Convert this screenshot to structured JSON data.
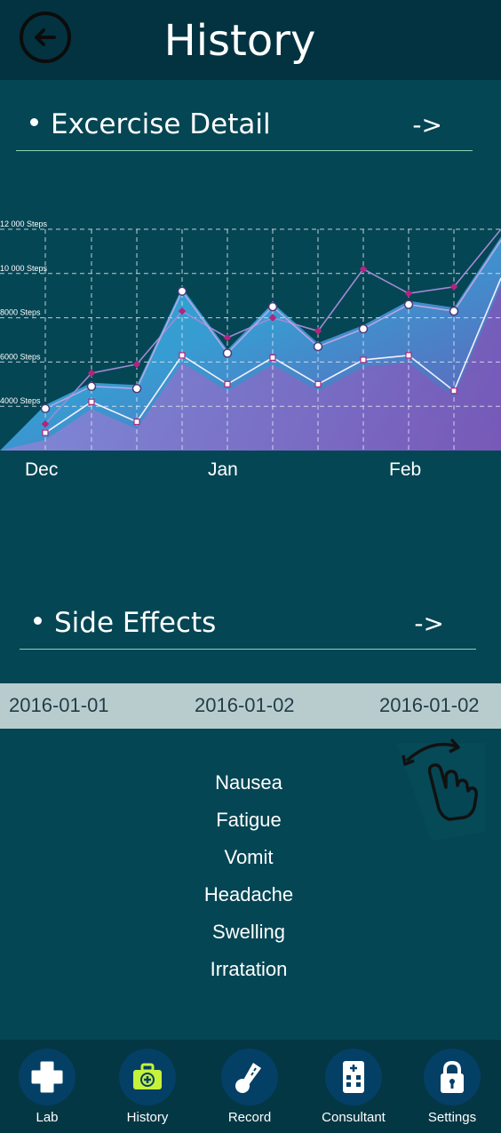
{
  "header": {
    "title": "History",
    "back_icon": "back-arrow-icon"
  },
  "exercise": {
    "title": "Excercise Detail",
    "arrow": "->"
  },
  "chart_data": {
    "type": "line",
    "y_ticks": [
      "12 000 Steps",
      "10 000 Steps",
      "8000 Steps",
      "6000 Steps",
      "4000 Steps"
    ],
    "ylim": [
      2000,
      12000
    ],
    "x_labels": [
      "Dec",
      "Jan",
      "Feb"
    ],
    "grid": true,
    "series": [
      {
        "marker": "diamond",
        "values": [
          3200,
          5500,
          5900,
          8300,
          7100,
          8000,
          7400,
          10200,
          9100,
          9400,
          12000
        ]
      },
      {
        "marker": "circle",
        "values": [
          3900,
          4900,
          4800,
          9200,
          6400,
          8500,
          6700,
          7500,
          8600,
          8300,
          11500
        ]
      },
      {
        "marker": "square",
        "values": [
          2800,
          4200,
          3300,
          6300,
          5000,
          6200,
          5000,
          6100,
          6300,
          4700,
          9800
        ]
      }
    ]
  },
  "side_effects": {
    "title": "Side Effects",
    "arrow": "->",
    "dates": [
      "2016-01-01",
      "2016-01-02",
      "2016-01-02"
    ],
    "items": [
      "Nausea",
      "Fatigue",
      "Vomit",
      "Headache",
      "Swelling",
      "Irratation"
    ],
    "swipe_icon": "swipe-hand-icon"
  },
  "nav": {
    "items": [
      {
        "label": "Lab",
        "icon": "medical-cross-icon"
      },
      {
        "label": "History",
        "icon": "medical-bag-icon",
        "active_color": "#c6f23a"
      },
      {
        "label": "Record",
        "icon": "thermometer-icon"
      },
      {
        "label": "Consultant",
        "icon": "hospital-building-icon"
      },
      {
        "label": "Settings",
        "icon": "lock-icon"
      }
    ]
  }
}
